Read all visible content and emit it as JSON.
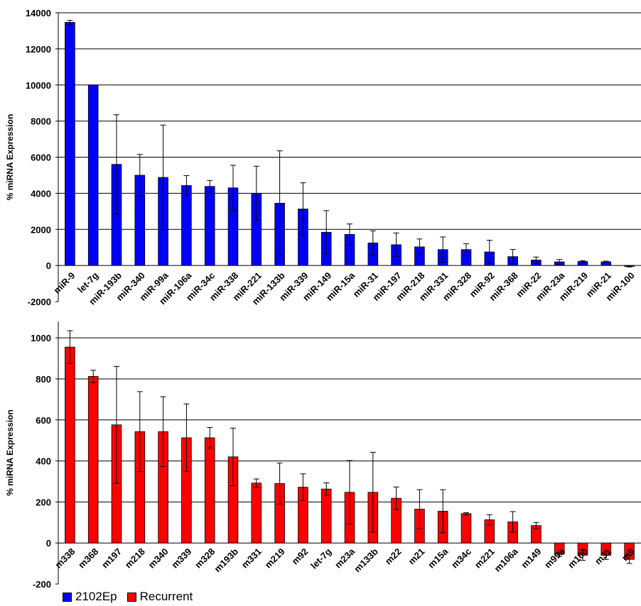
{
  "colors": {
    "series_a": "#0000ff",
    "series_b": "#ff0000"
  },
  "legend": [
    {
      "label": "2102Ep",
      "color": "#0000ff"
    },
    {
      "label": "Recurrent",
      "color": "#ff0000"
    }
  ],
  "chart_data": [
    {
      "type": "bar",
      "ylabel": "% miRNA Expression",
      "ylim": [
        -2000,
        14000
      ],
      "yticks": [
        -2000,
        0,
        2000,
        4000,
        6000,
        8000,
        10000,
        12000,
        14000
      ],
      "grid": true,
      "error_bars": true,
      "color": "#0000ff",
      "series_name": "2102Ep",
      "categories": [
        "miR-9",
        "let-7g",
        "miR-193b",
        "miR-340",
        "miR-99a",
        "miR-106a",
        "miR-34c",
        "miR-338",
        "miR-221",
        "miR-133b",
        "miR-339",
        "miR-149",
        "miR-15a",
        "miR-31",
        "miR-197",
        "miR-218",
        "miR-331",
        "miR-328",
        "miR-92",
        "miR-368",
        "miR-22",
        "miR-23a",
        "miR-219",
        "miR-21",
        "miR-100"
      ],
      "values": [
        13470,
        10000,
        5600,
        5000,
        4880,
        4430,
        4380,
        4300,
        4000,
        3450,
        3130,
        1840,
        1720,
        1250,
        1150,
        1030,
        880,
        880,
        750,
        490,
        300,
        200,
        220,
        200,
        -50
      ],
      "errors": [
        110,
        0,
        2750,
        1150,
        2900,
        550,
        330,
        1250,
        1500,
        2900,
        1450,
        1200,
        580,
        670,
        650,
        440,
        700,
        330,
        650,
        400,
        170,
        130,
        50,
        40,
        30
      ]
    },
    {
      "type": "bar",
      "ylabel": "% miRNA Expression",
      "ylim": [
        -200,
        1080
      ],
      "yticks": [
        -200,
        0,
        200,
        400,
        600,
        800,
        1000
      ],
      "grid": true,
      "error_bars": true,
      "color": "#ff0000",
      "series_name": "Recurrent",
      "categories": [
        "m338",
        "m368",
        "m197",
        "m218",
        "m340",
        "m339",
        "m328",
        "m193b",
        "m331",
        "m219",
        "m92",
        "let-7g",
        "m23a",
        "m133b",
        "m22",
        "m21",
        "m15a",
        "m34c",
        "m221",
        "m106a",
        "m149",
        "m99a",
        "m100",
        "m31",
        "m9"
      ],
      "values": [
        955,
        812,
        576,
        543,
        543,
        513,
        513,
        420,
        292,
        290,
        272,
        263,
        247,
        247,
        218,
        165,
        155,
        143,
        113,
        103,
        85,
        -55,
        -60,
        -60,
        -80
      ],
      "errors": [
        80,
        30,
        285,
        195,
        170,
        165,
        50,
        140,
        20,
        100,
        65,
        30,
        155,
        195,
        55,
        95,
        105,
        5,
        25,
        50,
        15,
        10,
        25,
        20,
        20
      ]
    }
  ]
}
